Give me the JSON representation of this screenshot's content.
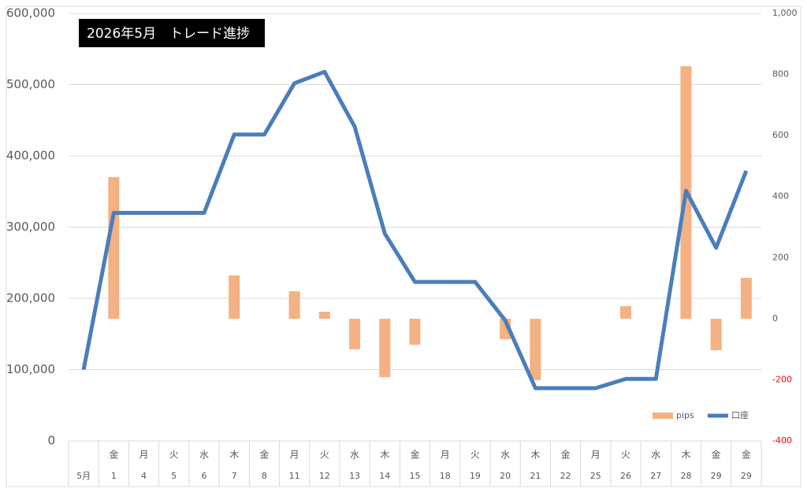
{
  "chart_data": {
    "type": "bar-line",
    "title": "2026年5月　トレード進捗",
    "categories": [
      "5月",
      "1",
      "4",
      "5",
      "6",
      "7",
      "8",
      "11",
      "12",
      "13",
      "14",
      "15",
      "18",
      "19",
      "20",
      "21",
      "22",
      "25",
      "26",
      "27",
      "28",
      "29",
      "29"
    ],
    "weekdays": [
      null,
      "金",
      "月",
      "火",
      "水",
      "木",
      "金",
      "月",
      "火",
      "水",
      "木",
      "金",
      "月",
      "火",
      "水",
      "木",
      "金",
      "月",
      "火",
      "水",
      "木",
      "金",
      "金"
    ],
    "series": [
      {
        "name": "pips",
        "type": "bar",
        "axis": "y2",
        "color": "#f4b183",
        "values": [
          null,
          464,
          null,
          null,
          null,
          142,
          null,
          90,
          23,
          -100,
          -191,
          -85,
          null,
          null,
          -67,
          -201,
          null,
          null,
          41,
          null,
          827,
          -103,
          134
        ]
      },
      {
        "name": "口座",
        "type": "line",
        "axis": "y",
        "color": "#4a7ebb",
        "values": [
          100000,
          320000,
          320000,
          320000,
          320000,
          430000,
          430000,
          502000,
          518000,
          441000,
          291000,
          223000,
          223000,
          223000,
          169000,
          74000,
          74000,
          74000,
          87000,
          87000,
          351000,
          271000,
          379000
        ]
      }
    ],
    "ylim": [
      0,
      600000
    ],
    "yticks": [
      0,
      {
        "value": 100000,
        "label": "100,000"
      },
      {
        "value": 200000,
        "label": "200,000"
      },
      {
        "value": 300000,
        "label": "300,000"
      },
      {
        "value": 400000,
        "label": "400,000"
      },
      {
        "value": 500000,
        "label": "500,000"
      },
      {
        "value": 600000,
        "label": "600,000"
      }
    ],
    "y2lim": [
      -400,
      1000
    ],
    "y2ticks": [
      -400,
      -200,
      0,
      200,
      400,
      600,
      800,
      {
        "value": 1000,
        "label": "1,000"
      }
    ],
    "negative_tick_color": "#ff0000",
    "grid": true,
    "legend": "bottom-right"
  }
}
